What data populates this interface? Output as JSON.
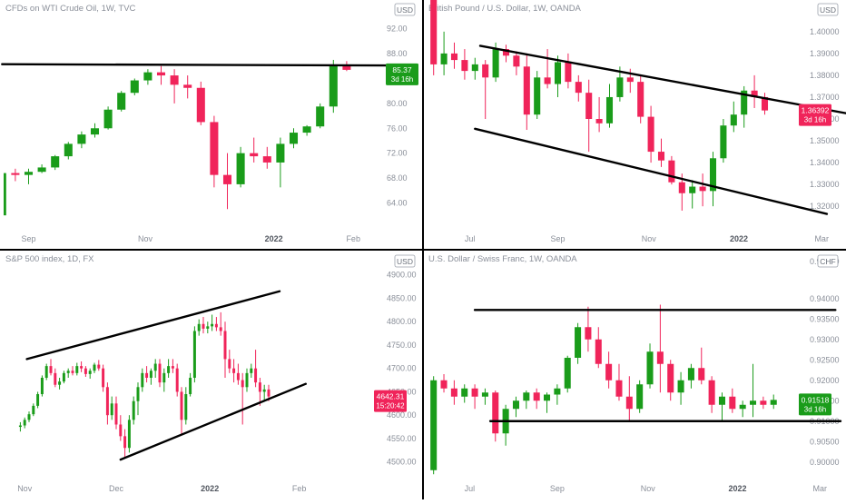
{
  "colors": {
    "up": "#1a9c1a",
    "down": "#f0245a",
    "trendline": "#000000",
    "axis_text": "#8a8f99",
    "divider": "#000000"
  },
  "chart_data": [
    {
      "type": "candlestick",
      "title": "CFDs on WTI Crude Oil, 1W, TVC",
      "currency": "USD",
      "price_tag": {
        "value": "85.37",
        "countdown": "3d 16h",
        "direction": "up"
      },
      "y_ticks": [
        "92.00",
        "88.00",
        "84.00",
        "80.00",
        "76.00",
        "72.00",
        "68.00",
        "64.00"
      ],
      "y_tick_values": [
        92,
        88,
        84,
        80,
        76,
        72,
        68,
        64
      ],
      "x_labels": [
        "Sep",
        "Nov",
        "2022",
        "Feb"
      ],
      "x_label_index": [
        2.5,
        11.3,
        21,
        27
      ],
      "ylim": [
        61,
        94
      ],
      "candles": [
        [
          62.0,
          69.0,
          62.0,
          68.8
        ],
        [
          68.8,
          69.5,
          67.5,
          68.5
        ],
        [
          68.5,
          69.5,
          67.0,
          69.0
        ],
        [
          69.0,
          70.2,
          68.8,
          69.7
        ],
        [
          69.7,
          71.7,
          69.3,
          71.5
        ],
        [
          71.5,
          73.8,
          71.0,
          73.5
        ],
        [
          73.5,
          75.5,
          72.8,
          75.0
        ],
        [
          75.0,
          76.8,
          74.5,
          76.0
        ],
        [
          76.0,
          79.5,
          75.8,
          79.0
        ],
        [
          79.0,
          82.0,
          78.7,
          81.7
        ],
        [
          81.7,
          84.0,
          81.3,
          83.7
        ],
        [
          83.7,
          85.5,
          83.0,
          85.0
        ],
        [
          85.0,
          86.0,
          83.0,
          84.5
        ],
        [
          84.5,
          85.5,
          80.0,
          83.0
        ],
        [
          83.0,
          84.5,
          80.8,
          82.5
        ],
        [
          82.5,
          83.5,
          76.5,
          77.0
        ],
        [
          77.0,
          78.0,
          66.5,
          68.5
        ],
        [
          68.5,
          72.0,
          63.0,
          67.0
        ],
        [
          67.0,
          73.0,
          66.5,
          72.0
        ],
        [
          72.0,
          74.5,
          70.5,
          71.5
        ],
        [
          71.5,
          73.0,
          69.5,
          70.5
        ],
        [
          70.5,
          74.5,
          66.5,
          73.5
        ],
        [
          73.5,
          76.0,
          72.8,
          75.3
        ],
        [
          75.3,
          76.5,
          74.8,
          76.3
        ],
        [
          76.3,
          80.0,
          76.0,
          79.5
        ],
        [
          79.5,
          87.0,
          78.5,
          86.0
        ],
        [
          86.0,
          86.8,
          85.2,
          85.4
        ]
      ],
      "trendlines": [
        {
          "from": [
            0.5,
            86.3
          ],
          "to": [
            29.5,
            86.1
          ]
        }
      ]
    },
    {
      "type": "candlestick",
      "title": "British Pound / U.S. Dollar, 1W, OANDA",
      "currency": "USD",
      "price_tag": {
        "value": "1.36392",
        "countdown": "3d 16h",
        "direction": "down"
      },
      "y_ticks": [
        "1.40000",
        "1.39000",
        "1.38000",
        "1.37000",
        "1.36000",
        "1.35000",
        "1.34000",
        "1.33000",
        "1.32000"
      ],
      "y_tick_values": [
        1.4,
        1.39,
        1.38,
        1.37,
        1.36,
        1.35,
        1.34,
        1.33,
        1.32
      ],
      "x_labels": [
        "Jul",
        "Sep",
        "Nov",
        "2022",
        "Mar"
      ],
      "x_label_index": [
        4,
        12.5,
        21.3,
        30,
        38
      ],
      "ylim": [
        1.313,
        1.407
      ],
      "candles": [
        [
          1.415,
          1.42,
          1.38,
          1.385
        ],
        [
          1.385,
          1.4,
          1.38,
          1.39
        ],
        [
          1.39,
          1.395,
          1.383,
          1.387
        ],
        [
          1.387,
          1.392,
          1.378,
          1.382
        ],
        [
          1.382,
          1.388,
          1.378,
          1.385
        ],
        [
          1.385,
          1.387,
          1.36,
          1.379
        ],
        [
          1.379,
          1.395,
          1.377,
          1.392
        ],
        [
          1.392,
          1.394,
          1.386,
          1.389
        ],
        [
          1.389,
          1.391,
          1.38,
          1.384
        ],
        [
          1.384,
          1.39,
          1.355,
          1.362
        ],
        [
          1.362,
          1.382,
          1.36,
          1.379
        ],
        [
          1.379,
          1.392,
          1.374,
          1.376
        ],
        [
          1.376,
          1.389,
          1.37,
          1.386
        ],
        [
          1.386,
          1.39,
          1.374,
          1.377
        ],
        [
          1.377,
          1.38,
          1.368,
          1.372
        ],
        [
          1.372,
          1.378,
          1.345,
          1.36
        ],
        [
          1.36,
          1.37,
          1.354,
          1.358
        ],
        [
          1.358,
          1.376,
          1.356,
          1.37
        ],
        [
          1.37,
          1.384,
          1.368,
          1.379
        ],
        [
          1.379,
          1.383,
          1.372,
          1.377
        ],
        [
          1.377,
          1.38,
          1.358,
          1.361
        ],
        [
          1.361,
          1.366,
          1.34,
          1.345
        ],
        [
          1.345,
          1.351,
          1.338,
          1.341
        ],
        [
          1.341,
          1.343,
          1.33,
          1.331
        ],
        [
          1.331,
          1.335,
          1.318,
          1.326
        ],
        [
          1.326,
          1.332,
          1.319,
          1.329
        ],
        [
          1.329,
          1.335,
          1.32,
          1.327
        ],
        [
          1.327,
          1.345,
          1.32,
          1.342
        ],
        [
          1.342,
          1.36,
          1.34,
          1.357
        ],
        [
          1.357,
          1.368,
          1.354,
          1.362
        ],
        [
          1.362,
          1.375,
          1.356,
          1.373
        ],
        [
          1.373,
          1.38,
          1.365,
          1.37
        ],
        [
          1.37,
          1.372,
          1.362,
          1.3639
        ]
      ],
      "trendlines": [
        {
          "from": [
            5,
            1.3935
          ],
          "to": [
            40.5,
            1.3625
          ]
        },
        {
          "from": [
            4.5,
            1.3555
          ],
          "to": [
            38.5,
            1.3165
          ]
        }
      ]
    },
    {
      "type": "candlestick",
      "title": "S&P 500 index, 1D, FX",
      "currency": "USD",
      "price_tag": {
        "value": "4642.31",
        "countdown": "15:20:42",
        "direction": "down"
      },
      "y_ticks": [
        "4900.00",
        "4850.00",
        "4800.00",
        "4750.00",
        "4700.00",
        "4650.00",
        "4600.00",
        "4550.00",
        "4500.00"
      ],
      "y_tick_values": [
        4900,
        4850,
        4800,
        4750,
        4700,
        4650,
        4600,
        4550,
        4500
      ],
      "x_labels": [
        "Nov",
        "Dec",
        "2022",
        "Feb"
      ],
      "x_label_index": [
        1.5,
        22.5,
        44,
        64.5
      ],
      "ylim": [
        4478,
        4915
      ],
      "candles": [
        [
          4575,
          4585,
          4565,
          4578
        ],
        [
          4578,
          4595,
          4572,
          4590
        ],
        [
          4590,
          4608,
          4585,
          4602
        ],
        [
          4602,
          4625,
          4598,
          4620
        ],
        [
          4620,
          4650,
          4615,
          4645
        ],
        [
          4645,
          4685,
          4640,
          4680
        ],
        [
          4680,
          4710,
          4675,
          4705
        ],
        [
          4705,
          4720,
          4685,
          4690
        ],
        [
          4690,
          4700,
          4660,
          4665
        ],
        [
          4665,
          4680,
          4655,
          4672
        ],
        [
          4672,
          4695,
          4668,
          4690
        ],
        [
          4690,
          4700,
          4680,
          4695
        ],
        [
          4695,
          4705,
          4685,
          4690
        ],
        [
          4690,
          4712,
          4685,
          4705
        ],
        [
          4705,
          4715,
          4692,
          4700
        ],
        [
          4700,
          4705,
          4682,
          4688
        ],
        [
          4688,
          4700,
          4678,
          4695
        ],
        [
          4695,
          4712,
          4690,
          4708
        ],
        [
          4708,
          4718,
          4695,
          4700
        ],
        [
          4700,
          4708,
          4650,
          4660
        ],
        [
          4660,
          4670,
          4580,
          4600
        ],
        [
          4600,
          4640,
          4590,
          4625
        ],
        [
          4625,
          4640,
          4570,
          4580
        ],
        [
          4580,
          4600,
          4545,
          4555
        ],
        [
          4555,
          4570,
          4510,
          4530
        ],
        [
          4530,
          4600,
          4520,
          4590
        ],
        [
          4590,
          4640,
          4580,
          4630
        ],
        [
          4630,
          4670,
          4600,
          4660
        ],
        [
          4660,
          4700,
          4650,
          4690
        ],
        [
          4690,
          4705,
          4670,
          4680
        ],
        [
          4680,
          4700,
          4665,
          4695
        ],
        [
          4695,
          4720,
          4680,
          4710
        ],
        [
          4710,
          4720,
          4660,
          4670
        ],
        [
          4670,
          4700,
          4650,
          4690
        ],
        [
          4690,
          4720,
          4680,
          4705
        ],
        [
          4705,
          4720,
          4690,
          4700
        ],
        [
          4700,
          4710,
          4640,
          4650
        ],
        [
          4650,
          4660,
          4560,
          4590
        ],
        [
          4590,
          4660,
          4580,
          4645
        ],
        [
          4645,
          4690,
          4640,
          4680
        ],
        [
          4680,
          4790,
          4670,
          4780
        ],
        [
          4780,
          4805,
          4770,
          4795
        ],
        [
          4795,
          4810,
          4775,
          4785
        ],
        [
          4785,
          4800,
          4775,
          4790
        ],
        [
          4790,
          4815,
          4780,
          4795
        ],
        [
          4795,
          4810,
          4780,
          4788
        ],
        [
          4788,
          4820,
          4770,
          4780
        ],
        [
          4780,
          4800,
          4680,
          4720
        ],
        [
          4720,
          4740,
          4690,
          4700
        ],
        [
          4700,
          4720,
          4670,
          4690
        ],
        [
          4690,
          4710,
          4665,
          4675
        ],
        [
          4675,
          4690,
          4580,
          4660
        ],
        [
          4660,
          4700,
          4650,
          4690
        ],
        [
          4690,
          4710,
          4680,
          4700
        ],
        [
          4700,
          4740,
          4660,
          4670
        ],
        [
          4670,
          4680,
          4620,
          4650
        ],
        [
          4650,
          4665,
          4630,
          4655
        ],
        [
          4655,
          4665,
          4630,
          4640
        ]
      ],
      "trendlines": [
        {
          "from": [
            2,
            4720
          ],
          "to": [
            60,
            4865
          ]
        },
        {
          "from": [
            23.5,
            4505
          ],
          "to": [
            66,
            4667
          ]
        }
      ]
    },
    {
      "type": "candlestick",
      "title": "U.S. Dollar / Swiss Franc, 1W, OANDA",
      "currency": "CHF",
      "price_tag": {
        "value": "0.91518",
        "countdown": "3d 16h",
        "direction": "up"
      },
      "y_ticks": [
        "0.94000",
        "0.93500",
        "0.93000",
        "0.92500",
        "0.92000",
        "0.91500",
        "0.91000",
        "0.90500",
        "0.90000"
      ],
      "y_tick_values": [
        0.94,
        0.935,
        0.93,
        0.925,
        0.92,
        0.915,
        0.91,
        0.905,
        0.9
      ],
      "x_labels": [
        "Jul",
        "Sep",
        "Nov",
        "2022",
        "Mar"
      ],
      "x_label_index": [
        4,
        12.5,
        21.3,
        30,
        38
      ],
      "ylim": [
        0.8975,
        0.9475
      ],
      "canvas_top_tick": "0.94500",
      "candles": [
        [
          0.898,
          0.921,
          0.897,
          0.92
        ],
        [
          0.92,
          0.9215,
          0.917,
          0.918
        ],
        [
          0.918,
          0.92,
          0.914,
          0.916
        ],
        [
          0.916,
          0.919,
          0.9145,
          0.918
        ],
        [
          0.918,
          0.919,
          0.913,
          0.916
        ],
        [
          0.916,
          0.918,
          0.914,
          0.917
        ],
        [
          0.917,
          0.9175,
          0.905,
          0.907
        ],
        [
          0.907,
          0.914,
          0.904,
          0.913
        ],
        [
          0.913,
          0.916,
          0.911,
          0.915
        ],
        [
          0.915,
          0.9175,
          0.913,
          0.917
        ],
        [
          0.917,
          0.918,
          0.913,
          0.915
        ],
        [
          0.915,
          0.917,
          0.912,
          0.9165
        ],
        [
          0.9165,
          0.919,
          0.914,
          0.918
        ],
        [
          0.918,
          0.926,
          0.917,
          0.9255
        ],
        [
          0.9255,
          0.934,
          0.924,
          0.933
        ],
        [
          0.933,
          0.938,
          0.927,
          0.93
        ],
        [
          0.93,
          0.933,
          0.923,
          0.924
        ],
        [
          0.924,
          0.927,
          0.918,
          0.92
        ],
        [
          0.92,
          0.924,
          0.915,
          0.916
        ],
        [
          0.916,
          0.921,
          0.91,
          0.913
        ],
        [
          0.913,
          0.92,
          0.912,
          0.919
        ],
        [
          0.919,
          0.929,
          0.918,
          0.927
        ],
        [
          0.927,
          0.9385,
          0.917,
          0.924
        ],
        [
          0.924,
          0.925,
          0.915,
          0.917
        ],
        [
          0.917,
          0.922,
          0.914,
          0.92
        ],
        [
          0.92,
          0.924,
          0.918,
          0.923
        ],
        [
          0.923,
          0.928,
          0.919,
          0.92
        ],
        [
          0.92,
          0.921,
          0.912,
          0.914
        ],
        [
          0.914,
          0.917,
          0.91,
          0.916
        ],
        [
          0.916,
          0.918,
          0.912,
          0.913
        ],
        [
          0.913,
          0.915,
          0.911,
          0.914
        ],
        [
          0.914,
          0.924,
          0.911,
          0.915
        ],
        [
          0.915,
          0.916,
          0.913,
          0.914
        ],
        [
          0.914,
          0.9165,
          0.913,
          0.9152
        ]
      ],
      "trendlines": [
        {
          "from": [
            4.5,
            0.9372
          ],
          "to": [
            39.5,
            0.9372
          ]
        },
        {
          "from": [
            6,
            0.91
          ],
          "to": [
            40,
            0.91
          ]
        }
      ]
    }
  ]
}
